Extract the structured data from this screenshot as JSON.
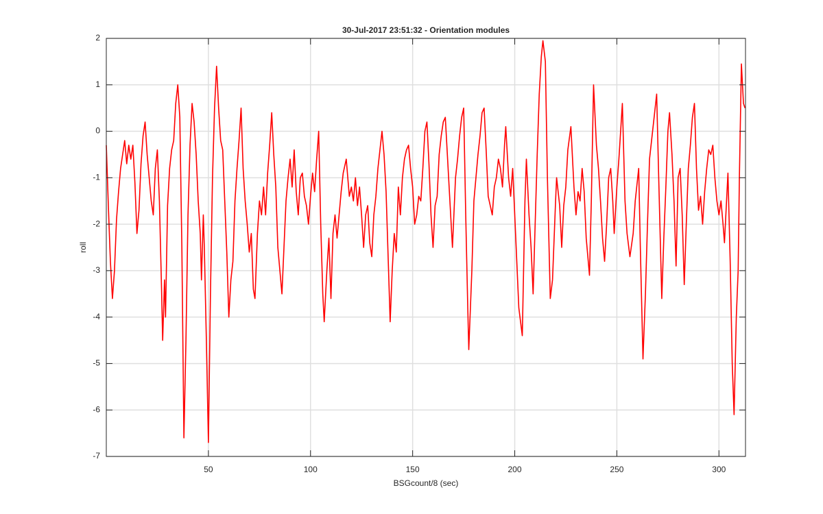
{
  "chart_data": {
    "type": "line",
    "title": "30-Jul-2017 23:51:32 - Orientation modules",
    "xlabel": "BSGcount/8 (sec)",
    "ylabel": "roll",
    "color": "#ff0000",
    "grid": true,
    "xlim": [
      0,
      313
    ],
    "ylim": [
      -7,
      2
    ],
    "xticks": [
      50,
      100,
      150,
      200,
      250,
      300
    ],
    "yticks": [
      -7,
      -6,
      -5,
      -4,
      -3,
      -2,
      -1,
      0,
      1,
      2
    ],
    "x": [
      0,
      1,
      2,
      3,
      4,
      5,
      6,
      7,
      8,
      9,
      10,
      11,
      12,
      13,
      14,
      15,
      16,
      17,
      18,
      19,
      20,
      21,
      22,
      23,
      24,
      25,
      26,
      27,
      27.6,
      28.5,
      29,
      30,
      31,
      32,
      33,
      34,
      35,
      36,
      37,
      38,
      39,
      40,
      41,
      42,
      43,
      44,
      45,
      46,
      46.6,
      47.5,
      48,
      49,
      50,
      51,
      52,
      53,
      54,
      55,
      56,
      57,
      58,
      59,
      60,
      61,
      62,
      63,
      64,
      65,
      66,
      67,
      68,
      69,
      70,
      71,
      72,
      72.8,
      74,
      75,
      76,
      77,
      78,
      79,
      80,
      81,
      82,
      83,
      84,
      85,
      86,
      87,
      88,
      89,
      90,
      91,
      92,
      93,
      94,
      95,
      96,
      97,
      98,
      99,
      100,
      101,
      102,
      103,
      104,
      105,
      106,
      106.7,
      108,
      109,
      110,
      111,
      112,
      113,
      114,
      115,
      116,
      117.5,
      119,
      120,
      121,
      122,
      123,
      124,
      125,
      126,
      127,
      128,
      129,
      130,
      131,
      132,
      133,
      134,
      135,
      136,
      137,
      138,
      139,
      140,
      141,
      142,
      143,
      144,
      145,
      146,
      147,
      148,
      149,
      150,
      151,
      152,
      153,
      154,
      155,
      156,
      157,
      158,
      159,
      160,
      161,
      162,
      163,
      164,
      165,
      166,
      167,
      168,
      169.5,
      171,
      172,
      173,
      174,
      175,
      176,
      177,
      177.5,
      179,
      180,
      181,
      182,
      183,
      184,
      185,
      186,
      187,
      188,
      189,
      190,
      191,
      192,
      193,
      194,
      195,
      195.6,
      197,
      198,
      199,
      200,
      201,
      202,
      203.7,
      205,
      205.7,
      207,
      208,
      209,
      210,
      211,
      212,
      213,
      213.8,
      215,
      216,
      217.4,
      218.5,
      220,
      220.5,
      222,
      223,
      224,
      225,
      226,
      227.5,
      229,
      230,
      231,
      232,
      233,
      234,
      235,
      236.6,
      237.5,
      238.6,
      240,
      241,
      242,
      243,
      244,
      245,
      246,
      247,
      248,
      248.7,
      250,
      251,
      252.7,
      254,
      255,
      256.4,
      258,
      259,
      260.7,
      261.5,
      262.8,
      264,
      265,
      266,
      267,
      268,
      269.5,
      270.5,
      272,
      273,
      274,
      275,
      275.8,
      277,
      278,
      279,
      280,
      281,
      282,
      283,
      284,
      285,
      286,
      287,
      288,
      289,
      290,
      291,
      292,
      293,
      294,
      295,
      296,
      297,
      298,
      299,
      300,
      301,
      302,
      302.7,
      304.4,
      305.5,
      306.5,
      307.4,
      308.5,
      309.4,
      310,
      311,
      312,
      312.75
    ],
    "values": [
      -0.3,
      -1.6,
      -2.8,
      -3.6,
      -3.0,
      -1.9,
      -1.3,
      -0.8,
      -0.5,
      -0.2,
      -0.7,
      -0.3,
      -0.6,
      -0.3,
      -1.1,
      -2.2,
      -1.7,
      -0.7,
      -0.1,
      0.2,
      -0.5,
      -1.0,
      -1.5,
      -1.8,
      -0.8,
      -0.4,
      -1.5,
      -3.3,
      -4.5,
      -3.2,
      -4.0,
      -1.6,
      -0.8,
      -0.4,
      -0.2,
      0.6,
      1.0,
      0.3,
      -2.5,
      -6.6,
      -4.5,
      -1.8,
      -0.3,
      0.6,
      0.2,
      -0.5,
      -1.5,
      -2.2,
      -3.2,
      -1.8,
      -2.5,
      -4.5,
      -6.7,
      -3.5,
      -1.0,
      0.5,
      1.4,
      0.5,
      -0.2,
      -0.4,
      -1.5,
      -2.6,
      -4.0,
      -3.2,
      -2.8,
      -1.5,
      -0.8,
      -0.2,
      0.5,
      -0.8,
      -1.5,
      -2.0,
      -2.6,
      -2.2,
      -3.4,
      -3.6,
      -2.2,
      -1.5,
      -1.8,
      -1.2,
      -1.8,
      -0.9,
      -0.3,
      0.4,
      -0.5,
      -1.2,
      -2.5,
      -3.0,
      -3.5,
      -2.5,
      -1.5,
      -1.0,
      -0.6,
      -1.2,
      -0.4,
      -1.3,
      -1.8,
      -1.0,
      -0.9,
      -1.4,
      -1.6,
      -2.0,
      -1.4,
      -0.9,
      -1.3,
      -0.6,
      0.0,
      -2.0,
      -3.5,
      -4.1,
      -3.0,
      -2.3,
      -3.6,
      -2.2,
      -1.8,
      -2.3,
      -1.8,
      -1.3,
      -0.9,
      -0.6,
      -1.4,
      -1.2,
      -1.5,
      -1.0,
      -1.6,
      -1.2,
      -1.8,
      -2.5,
      -1.8,
      -1.6,
      -2.4,
      -2.7,
      -1.8,
      -1.4,
      -0.8,
      -0.4,
      0.0,
      -0.5,
      -1.3,
      -2.7,
      -4.1,
      -3.0,
      -2.2,
      -2.6,
      -1.2,
      -1.8,
      -1.0,
      -0.6,
      -0.4,
      -0.3,
      -0.8,
      -1.2,
      -2.0,
      -1.8,
      -1.4,
      -1.5,
      -0.8,
      0.0,
      0.2,
      -0.7,
      -1.8,
      -2.5,
      -1.6,
      -1.4,
      -0.5,
      -0.1,
      0.2,
      0.3,
      -0.5,
      -1.3,
      -2.5,
      -1.0,
      -0.6,
      -0.1,
      0.3,
      0.5,
      -1.8,
      -3.8,
      -4.7,
      -3.0,
      -1.5,
      -1.0,
      -0.5,
      -0.1,
      0.4,
      0.5,
      -0.4,
      -1.4,
      -1.6,
      -1.8,
      -1.2,
      -1.0,
      -0.6,
      -0.8,
      -1.2,
      -0.3,
      0.1,
      -1.0,
      -1.4,
      -0.8,
      -1.8,
      -2.8,
      -3.8,
      -4.4,
      -1.5,
      -0.6,
      -1.8,
      -2.5,
      -3.5,
      -2.0,
      -0.5,
      0.8,
      1.6,
      1.95,
      1.5,
      -1.0,
      -3.6,
      -3.2,
      -1.5,
      -1.0,
      -1.6,
      -2.5,
      -1.6,
      -1.2,
      -0.4,
      0.1,
      -1.2,
      -1.8,
      -1.3,
      -1.5,
      -0.8,
      -1.3,
      -2.3,
      -3.1,
      -1.5,
      1.0,
      -0.3,
      -0.8,
      -1.5,
      -2.3,
      -2.8,
      -2.0,
      -1.0,
      -0.8,
      -1.5,
      -2.2,
      -1.2,
      -0.6,
      0.6,
      -1.5,
      -2.2,
      -2.7,
      -2.2,
      -1.5,
      -0.8,
      -2.5,
      -4.9,
      -3.5,
      -2.0,
      -0.6,
      -0.2,
      0.2,
      0.8,
      -1.0,
      -3.6,
      -2.3,
      -1.2,
      0.0,
      0.4,
      -0.5,
      -1.5,
      -2.9,
      -1.0,
      -0.8,
      -1.8,
      -3.3,
      -2.0,
      -0.8,
      -0.3,
      0.3,
      0.6,
      -0.8,
      -1.7,
      -1.4,
      -2.0,
      -1.3,
      -0.8,
      -0.4,
      -0.5,
      -0.3,
      -1.0,
      -1.5,
      -1.8,
      -1.5,
      -2.0,
      -2.4,
      -0.9,
      -2.8,
      -5.0,
      -6.1,
      -4.0,
      -3.0,
      -1.0,
      1.45,
      0.6,
      0.5
    ]
  }
}
